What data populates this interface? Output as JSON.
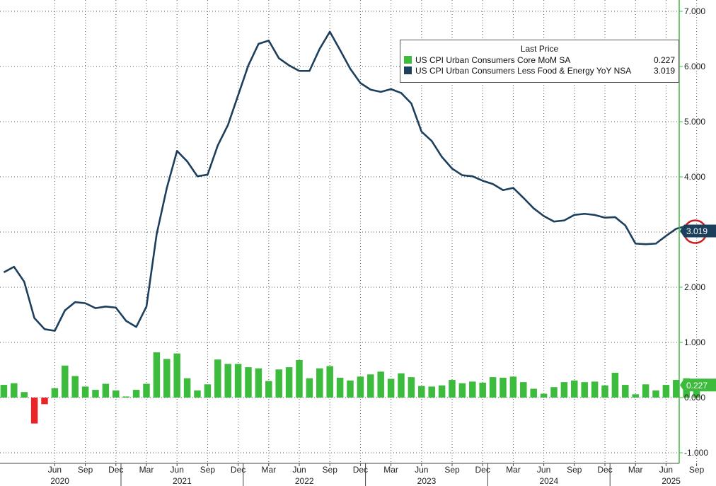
{
  "chart_data": {
    "type": "bar+line",
    "title": "",
    "xlabel": "",
    "ylabel": "",
    "ylim": [
      -1.0,
      7.0
    ],
    "y_axis_position": "right",
    "grid": true,
    "yticks": [
      "7.000",
      "6.000",
      "5.000",
      "4.000",
      "3.000",
      "2.000",
      "1.000",
      "0.000",
      "-1.000"
    ],
    "ytick_values": [
      7,
      6,
      5,
      4,
      3,
      2,
      1,
      0,
      -1
    ],
    "month_ticks": [
      {
        "label": "Jun",
        "month": 5
      },
      {
        "label": "Sep",
        "month": 8
      },
      {
        "label": "Dec",
        "month": 11
      },
      {
        "label": "Mar",
        "month": 14
      },
      {
        "label": "Jun",
        "month": 17
      },
      {
        "label": "Sep",
        "month": 20
      },
      {
        "label": "Dec",
        "month": 23
      },
      {
        "label": "Mar",
        "month": 26
      },
      {
        "label": "Jun",
        "month": 29
      },
      {
        "label": "Sep",
        "month": 32
      },
      {
        "label": "Dec",
        "month": 35
      },
      {
        "label": "Mar",
        "month": 38
      },
      {
        "label": "Jun",
        "month": 41
      },
      {
        "label": "Sep",
        "month": 44
      },
      {
        "label": "Dec",
        "month": 47
      },
      {
        "label": "Mar",
        "month": 50
      },
      {
        "label": "Jun",
        "month": 53
      },
      {
        "label": "Sep",
        "month": 56
      },
      {
        "label": "Dec",
        "month": 59
      },
      {
        "label": "Mar",
        "month": 62
      },
      {
        "label": "Jun",
        "month": 65
      },
      {
        "label": "Sep",
        "month": 68
      }
    ],
    "year_labels": [
      {
        "label": "2020",
        "month": 5.5
      },
      {
        "label": "2021",
        "month": 17.5
      },
      {
        "label": "2022",
        "month": 29.5
      },
      {
        "label": "2023",
        "month": 41.5
      },
      {
        "label": "2024",
        "month": 53.5
      },
      {
        "label": "2025",
        "month": 65.5
      }
    ],
    "start_month": "2020-01",
    "legend": {
      "title": "Last Price",
      "position": "top-right",
      "entries": [
        {
          "name": "US CPI Urban Consumers Core MoM SA",
          "value": "0.227",
          "color": "#3dbb3d"
        },
        {
          "name": "US CPI Urban Consumers Less Food & Energy YoY NSA",
          "value": "3.019",
          "color": "#1d3f5e"
        }
      ]
    },
    "series": [
      {
        "name": "US CPI Urban Consumers Less Food & Energy YoY NSA",
        "type": "line",
        "color": "#1d3f5e",
        "last_label": "3.019",
        "values": [
          2.27,
          2.37,
          2.1,
          1.44,
          1.24,
          1.21,
          1.58,
          1.73,
          1.71,
          1.62,
          1.65,
          1.63,
          1.39,
          1.28,
          1.65,
          2.96,
          3.8,
          4.47,
          4.28,
          4.01,
          4.04,
          4.57,
          4.94,
          5.48,
          6.02,
          6.41,
          6.47,
          6.15,
          6.02,
          5.92,
          5.92,
          6.32,
          6.63,
          6.3,
          5.96,
          5.7,
          5.58,
          5.54,
          5.59,
          5.52,
          5.33,
          4.82,
          4.65,
          4.36,
          4.15,
          4.03,
          4.01,
          3.93,
          3.87,
          3.76,
          3.8,
          3.62,
          3.43,
          3.29,
          3.19,
          3.21,
          3.31,
          3.33,
          3.31,
          3.26,
          3.27,
          3.12,
          2.79,
          2.78,
          2.79,
          2.93,
          3.06,
          3.11,
          3.019
        ]
      },
      {
        "name": "US CPI Urban Consumers Core MoM SA",
        "type": "bar",
        "color": "#3dbb3d",
        "negative_color": "#e8262a",
        "last_label": "0.227",
        "values": [
          0.23,
          0.26,
          0.1,
          -0.47,
          -0.12,
          0.17,
          0.58,
          0.39,
          0.2,
          0.14,
          0.25,
          0.13,
          0.02,
          0.14,
          0.25,
          0.82,
          0.7,
          0.8,
          0.35,
          0.13,
          0.24,
          0.69,
          0.61,
          0.61,
          0.55,
          0.53,
          0.3,
          0.51,
          0.55,
          0.68,
          0.35,
          0.53,
          0.57,
          0.36,
          0.31,
          0.38,
          0.42,
          0.47,
          0.34,
          0.44,
          0.37,
          0.21,
          0.2,
          0.22,
          0.32,
          0.26,
          0.29,
          0.27,
          0.37,
          0.36,
          0.38,
          0.28,
          0.16,
          0.07,
          0.19,
          0.28,
          0.31,
          0.28,
          0.29,
          0.22,
          0.45,
          0.23,
          0.06,
          0.24,
          0.13,
          0.23,
          0.32,
          0.35,
          0.227
        ]
      }
    ]
  }
}
